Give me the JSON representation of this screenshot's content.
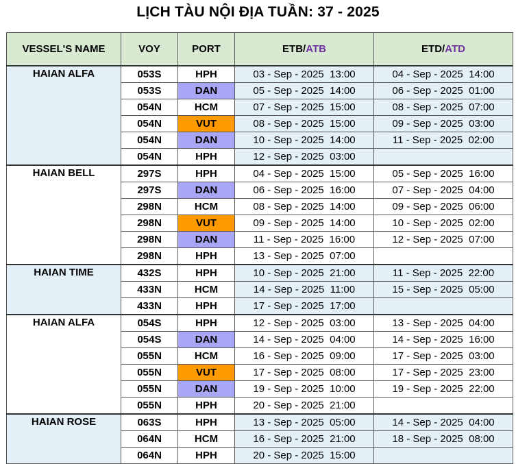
{
  "title": "LỊCH TÀU NỘI ĐỊA TUẦN: 37 - 2025",
  "header": {
    "vessel": "VESSEL'S NAME",
    "voy": "VOY",
    "port": "PORT",
    "etb_a": "ETB/",
    "etb_b": "ATB",
    "etd_a": "ETD/",
    "etd_b": "ATD"
  },
  "colors": {
    "header_bg": "#d9ead3",
    "row_shade": "#e3f0f7",
    "dan": "#a9a6f5",
    "vut": "#ff9900",
    "accent": "#7030a0"
  },
  "groups": [
    {
      "name": "HAIAN ALFA",
      "rows": [
        {
          "voy": "053S",
          "port": "HPH",
          "etb": "03 - Sep - 2025  13:00",
          "etd": "04 - Sep - 2025  14:00"
        },
        {
          "voy": "053S",
          "port": "DAN",
          "etb": "05 - Sep - 2025  14:00",
          "etd": "06 - Sep - 2025  01:00"
        },
        {
          "voy": "054N",
          "port": "HCM",
          "etb": "07 - Sep - 2025  15:00",
          "etd": "08 - Sep - 2025  07:00"
        },
        {
          "voy": "054N",
          "port": "VUT",
          "etb": "08 - Sep - 2025  15:00",
          "etd": "09 - Sep - 2025  03:00"
        },
        {
          "voy": "054N",
          "port": "DAN",
          "etb": "10 - Sep - 2025  14:00",
          "etd": "11 - Sep - 2025  02:00"
        },
        {
          "voy": "054N",
          "port": "HPH",
          "etb": "12 - Sep - 2025  03:00",
          "etd": ""
        }
      ]
    },
    {
      "name": "HAIAN BELL",
      "rows": [
        {
          "voy": "297S",
          "port": "HPH",
          "etb": "04 - Sep - 2025  15:00",
          "etd": "05 - Sep - 2025  16:00"
        },
        {
          "voy": "297S",
          "port": "DAN",
          "etb": "06 - Sep - 2025  16:00",
          "etd": "07 - Sep - 2025  04:00"
        },
        {
          "voy": "298N",
          "port": "HCM",
          "etb": "08 - Sep - 2025  14:00",
          "etd": "09 - Sep - 2025  06:00"
        },
        {
          "voy": "298N",
          "port": "VUT",
          "etb": "09 - Sep - 2025  14:00",
          "etd": "10 - Sep - 2025  02:00"
        },
        {
          "voy": "298N",
          "port": "DAN",
          "etb": "11 - Sep - 2025  16:00",
          "etd": "12 - Sep - 2025  07:00"
        },
        {
          "voy": "298N",
          "port": "HPH",
          "etb": "13 - Sep - 2025  07:00",
          "etd": ""
        }
      ]
    },
    {
      "name": "HAIAN TIME",
      "rows": [
        {
          "voy": "432S",
          "port": "HPH",
          "etb": "10 - Sep - 2025  21:00",
          "etd": "11 - Sep - 2025  22:00"
        },
        {
          "voy": "433N",
          "port": "HCM",
          "etb": "14 - Sep - 2025  11:00",
          "etd": "15 - Sep - 2025  05:00"
        },
        {
          "voy": "433N",
          "port": "HPH",
          "etb": "17 - Sep - 2025  17:00",
          "etd": ""
        }
      ]
    },
    {
      "name": "HAIAN ALFA",
      "rows": [
        {
          "voy": "054S",
          "port": "HPH",
          "etb": "12 - Sep - 2025  03:00",
          "etd": "13 - Sep - 2025  04:00"
        },
        {
          "voy": "054S",
          "port": "DAN",
          "etb": "14 - Sep - 2025  04:00",
          "etd": "14 - Sep - 2025  16:00"
        },
        {
          "voy": "055N",
          "port": "HCM",
          "etb": "16 - Sep - 2025  09:00",
          "etd": "17 - Sep - 2025  03:00"
        },
        {
          "voy": "055N",
          "port": "VUT",
          "etb": "17 - Sep - 2025  08:00",
          "etd": "17 - Sep - 2025  23:00"
        },
        {
          "voy": "055N",
          "port": "DAN",
          "etb": "19 - Sep - 2025  10:00",
          "etd": "19 - Sep - 2025  22:00"
        },
        {
          "voy": "055N",
          "port": "HPH",
          "etb": "20 - Sep - 2025  21:00",
          "etd": ""
        }
      ]
    },
    {
      "name": "HAIAN ROSE",
      "rows": [
        {
          "voy": "063S",
          "port": "HPH",
          "etb": "13 - Sep - 2025  05:00",
          "etd": "14 - Sep - 2025  04:00"
        },
        {
          "voy": "064N",
          "port": "HCM",
          "etb": "16 - Sep - 2025  21:00",
          "etd": "18 - Sep - 2025  08:00"
        },
        {
          "voy": "064N",
          "port": "HPH",
          "etb": "20 - Sep - 2025  15:00",
          "etd": ""
        }
      ]
    }
  ]
}
